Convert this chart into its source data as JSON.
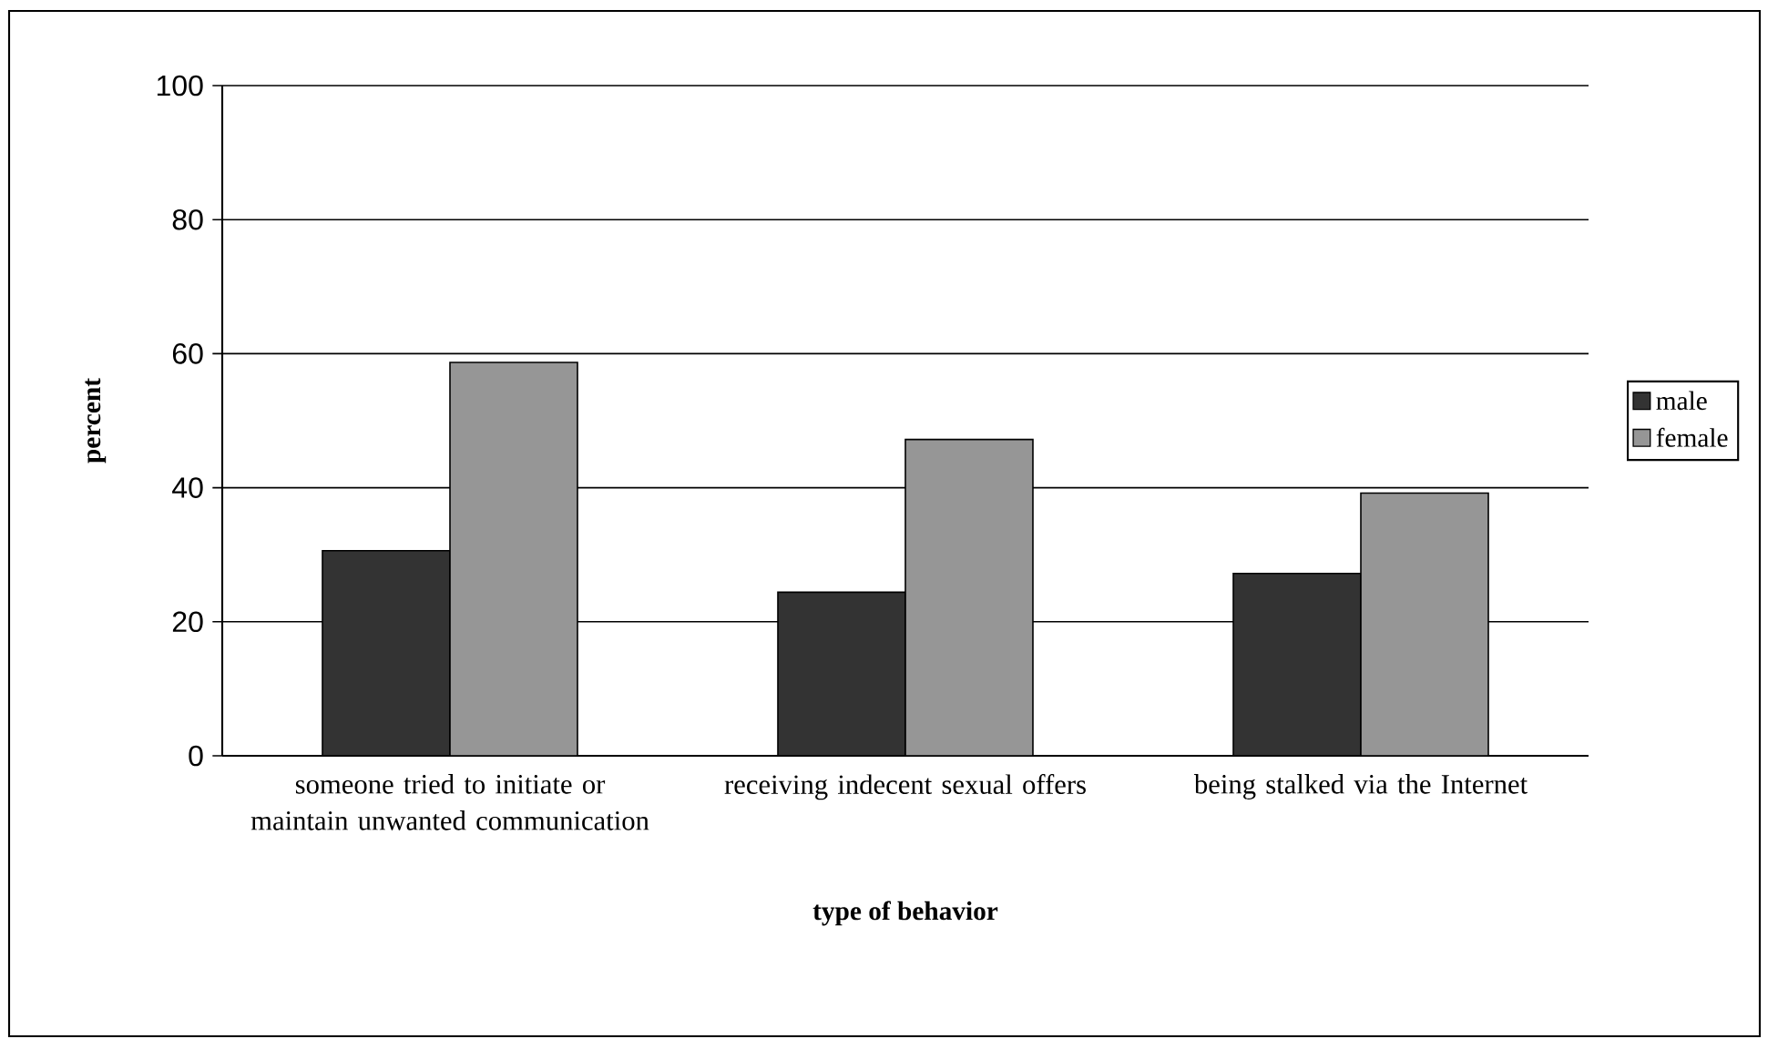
{
  "chart_data": {
    "type": "bar",
    "xlabel": "type of behavior",
    "ylabel": "percent",
    "categories": [
      "someone tried to initiate or maintain unwanted communication",
      "receiving indecent sexual offers",
      "being stalked via the Internet"
    ],
    "series": [
      {
        "name": "male",
        "color": "#333333",
        "values": [
          30.6,
          24.4,
          27.2
        ]
      },
      {
        "name": "female",
        "color": "#969696",
        "values": [
          58.7,
          47.2,
          39.2
        ]
      }
    ],
    "ylim": [
      0,
      100
    ],
    "yticks": [
      0,
      20,
      40,
      60,
      80,
      100
    ],
    "grid": "y",
    "legend": "right"
  }
}
